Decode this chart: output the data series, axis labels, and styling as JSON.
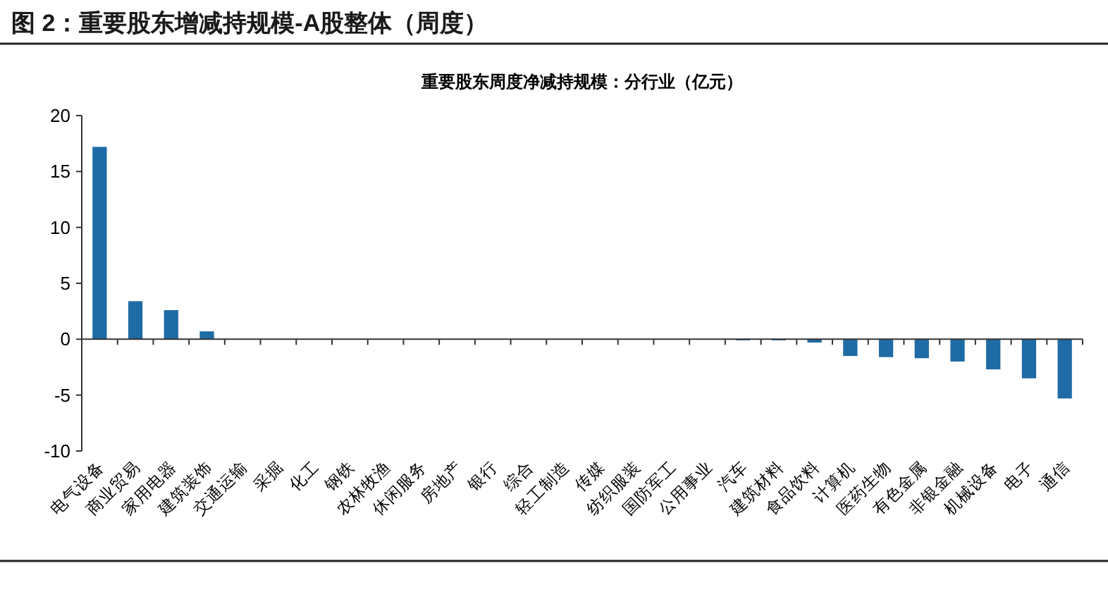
{
  "chart_data": {
    "type": "bar",
    "title": "图 2：重要股东增减持规模-A股整体（周度）",
    "subtitle": "重要股东周度净减持规模：分行业（亿元）",
    "categories": [
      "电气设备",
      "商业贸易",
      "家用电器",
      "建筑装饰",
      "交通运输",
      "采掘",
      "化工",
      "钢铁",
      "农林牧渔",
      "休闲服务",
      "房地产",
      "银行",
      "综合",
      "轻工制造",
      "传媒",
      "纺织服装",
      "国防军工",
      "公用事业",
      "汽车",
      "建筑材料",
      "食品饮料",
      "计算机",
      "医药生物",
      "有色金属",
      "非银金融",
      "机械设备",
      "电子",
      "通信"
    ],
    "values": [
      17.2,
      3.4,
      2.6,
      0.7,
      0,
      0,
      0,
      0,
      0,
      0,
      0,
      0,
      0,
      0,
      0,
      0,
      0,
      0,
      -0.1,
      -0.1,
      -0.3,
      -1.5,
      -1.6,
      -1.7,
      -2.0,
      -2.7,
      -3.5,
      -5.3
    ],
    "color": "#1f6ba5",
    "ylim": [
      -10,
      20
    ],
    "yticks": [
      -10,
      -5,
      0,
      5,
      10,
      15,
      20
    ]
  }
}
